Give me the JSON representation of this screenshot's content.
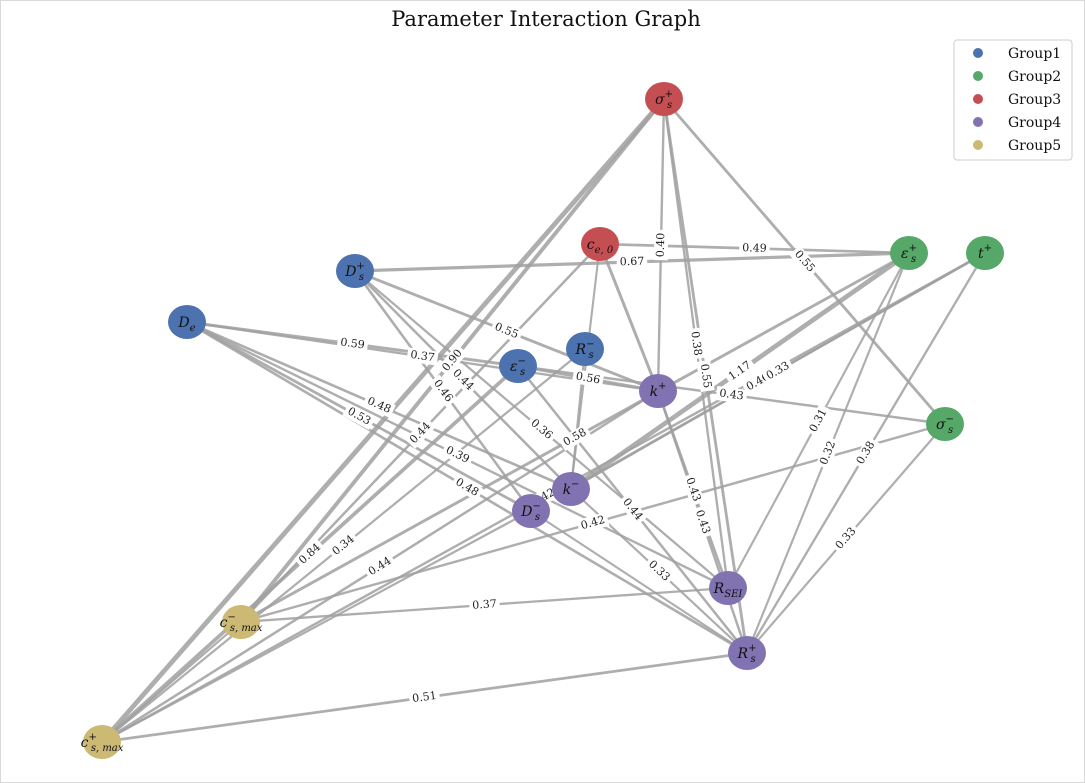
{
  "title": "Parameter Interaction Graph",
  "legend": [
    {
      "label": "Group1",
      "color": "#4c72b0"
    },
    {
      "label": "Group2",
      "color": "#55a868"
    },
    {
      "label": "Group3",
      "color": "#c44e52"
    },
    {
      "label": "Group4",
      "color": "#8172b2"
    },
    {
      "label": "Group5",
      "color": "#ccb974"
    }
  ],
  "nodes": [
    {
      "id": "sigma_s_plus",
      "name": "σ",
      "sub": "s",
      "sup": "+",
      "group": 3
    },
    {
      "id": "c_e0",
      "name": "c",
      "sub": "e, 0",
      "sup": "",
      "group": 3
    },
    {
      "id": "Ds_plus",
      "name": "D",
      "sub": "s",
      "sup": "+",
      "group": 1
    },
    {
      "id": "De",
      "name": "D",
      "sub": "e",
      "sup": "",
      "group": 1
    },
    {
      "id": "Rs_minus",
      "name": "R",
      "sub": "s",
      "sup": "−",
      "group": 1
    },
    {
      "id": "eps_s_minus",
      "name": "ε",
      "sub": "s",
      "sup": "−",
      "group": 1
    },
    {
      "id": "eps_s_plus",
      "name": "ε",
      "sub": "s",
      "sup": "+",
      "group": 2
    },
    {
      "id": "t_plus",
      "name": "t",
      "sub": "",
      "sup": "+",
      "group": 2
    },
    {
      "id": "sigma_s_minus",
      "name": "σ",
      "sub": "s",
      "sup": "−",
      "group": 2
    },
    {
      "id": "k_plus",
      "name": "k",
      "sub": "",
      "sup": "+",
      "group": 4
    },
    {
      "id": "k_minus",
      "name": "k",
      "sub": "",
      "sup": "−",
      "group": 4
    },
    {
      "id": "Ds_minus",
      "name": "D",
      "sub": "s",
      "sup": "−",
      "group": 4
    },
    {
      "id": "R_SEI",
      "name": "R",
      "sub": "SEI",
      "sup": "",
      "group": 4
    },
    {
      "id": "Rs_plus",
      "name": "R",
      "sub": "s",
      "sup": "+",
      "group": 4
    },
    {
      "id": "cs_max_minus",
      "name": "c",
      "sub": "s, max",
      "sup": "−",
      "group": 5
    },
    {
      "id": "cs_max_plus",
      "name": "c",
      "sub": "s, max",
      "sup": "+",
      "group": 5
    }
  ],
  "edges": [
    {
      "source": "sigma_s_plus",
      "target": "cs_max_plus",
      "weight": 1.2,
      "label": ""
    },
    {
      "source": "sigma_s_plus",
      "target": "cs_max_minus",
      "weight": 0.9,
      "label": "0.90"
    },
    {
      "source": "sigma_s_plus",
      "target": "k_plus",
      "weight": 0.4,
      "label": "0.40"
    },
    {
      "source": "sigma_s_plus",
      "target": "R_SEI",
      "weight": 0.38,
      "label": "0.38"
    },
    {
      "source": "sigma_s_plus",
      "target": "Rs_plus",
      "weight": 0.55,
      "label": "0.55"
    },
    {
      "source": "sigma_s_plus",
      "target": "sigma_s_minus",
      "weight": 0.55,
      "label": "0.55"
    },
    {
      "source": "c_e0",
      "target": "eps_s_plus",
      "weight": 0.49,
      "label": "0.49"
    },
    {
      "source": "c_e0",
      "target": "cs_max_minus",
      "weight": 0.44,
      "label": "0.44"
    },
    {
      "source": "c_e0",
      "target": "k_plus",
      "weight": 0.6,
      "label": ""
    },
    {
      "source": "c_e0",
      "target": "k_minus",
      "weight": 0.3,
      "label": ""
    },
    {
      "source": "Ds_plus",
      "target": "k_plus",
      "weight": 0.55,
      "label": "0.55"
    },
    {
      "source": "Ds_plus",
      "target": "Ds_minus",
      "weight": 0.46,
      "label": "0.46"
    },
    {
      "source": "Ds_plus",
      "target": "k_minus",
      "weight": 0.44,
      "label": "0.44"
    },
    {
      "source": "Ds_plus",
      "target": "R_SEI",
      "weight": 0.36,
      "label": "0.36"
    },
    {
      "source": "De",
      "target": "eps_s_minus",
      "weight": 0.59,
      "label": "0.59"
    },
    {
      "source": "De",
      "target": "Ds_minus",
      "weight": 0.53,
      "label": "0.53"
    },
    {
      "source": "De",
      "target": "k_plus",
      "weight": 0.37,
      "label": "0.37"
    },
    {
      "source": "De",
      "target": "Rs_plus",
      "weight": 0.48,
      "label": "0.48"
    },
    {
      "source": "De",
      "target": "R_SEI",
      "weight": 0.39,
      "label": "0.39"
    },
    {
      "source": "De",
      "target": "k_minus",
      "weight": 0.48,
      "label": "0.48"
    },
    {
      "source": "eps_s_minus",
      "target": "sigma_s_minus",
      "weight": 0.43,
      "label": "0.43"
    },
    {
      "source": "eps_s_minus",
      "target": "cs_max_plus",
      "weight": 0.84,
      "label": "0.84"
    },
    {
      "source": "eps_s_minus",
      "target": "Rs_plus",
      "weight": 0.44,
      "label": "0.44"
    },
    {
      "source": "eps_s_minus",
      "target": "k_plus",
      "weight": 0.56,
      "label": "0.56"
    },
    {
      "source": "Rs_minus",
      "target": "cs_max_plus",
      "weight": 0.34,
      "label": "0.34"
    },
    {
      "source": "Rs_minus",
      "target": "k_minus",
      "weight": 0.3,
      "label": ""
    },
    {
      "source": "eps_s_plus",
      "target": "Ds_plus",
      "weight": 0.67,
      "label": "0.67"
    },
    {
      "source": "eps_s_plus",
      "target": "k_minus",
      "weight": 1.17,
      "label": "1.17"
    },
    {
      "source": "eps_s_plus",
      "target": "R_SEI",
      "weight": 0.31,
      "label": "0.31"
    },
    {
      "source": "eps_s_plus",
      "target": "Rs_plus",
      "weight": 0.32,
      "label": "0.32"
    },
    {
      "source": "eps_s_plus",
      "target": "cs_max_minus",
      "weight": 0.58,
      "label": "0.58"
    },
    {
      "source": "t_plus",
      "target": "cs_max_plus",
      "weight": 0.42,
      "label": "0.42"
    },
    {
      "source": "t_plus",
      "target": "Ds_minus",
      "weight": 0.46,
      "label": "0.46"
    },
    {
      "source": "t_plus",
      "target": "Rs_plus",
      "weight": 0.38,
      "label": "0.38"
    },
    {
      "source": "t_plus",
      "target": "k_minus",
      "weight": 0.33,
      "label": "0.33"
    },
    {
      "source": "sigma_s_minus",
      "target": "cs_max_minus",
      "weight": 0.42,
      "label": "0.42"
    },
    {
      "source": "sigma_s_minus",
      "target": "Rs_plus",
      "weight": 0.33,
      "label": "0.33"
    },
    {
      "source": "k_plus",
      "target": "R_SEI",
      "weight": 0.43,
      "label": "0.43"
    },
    {
      "source": "k_plus",
      "target": "Rs_plus",
      "weight": 0.43,
      "label": "0.43"
    },
    {
      "source": "k_plus",
      "target": "cs_max_plus",
      "weight": 0.44,
      "label": "0.44"
    },
    {
      "source": "k_minus",
      "target": "Rs_plus",
      "weight": 0.33,
      "label": "0.33"
    },
    {
      "source": "k_minus",
      "target": "cs_max_plus",
      "weight": 0.34,
      "label": ""
    },
    {
      "source": "Ds_minus",
      "target": "Rs_plus",
      "weight": 0.3,
      "label": ""
    },
    {
      "source": "R_SEI",
      "target": "cs_max_minus",
      "weight": 0.37,
      "label": "0.37"
    },
    {
      "source": "Rs_plus",
      "target": "cs_max_plus",
      "weight": 0.51,
      "label": "0.51"
    },
    {
      "source": "cs_max_minus",
      "target": "cs_max_plus",
      "weight": 0.3,
      "label": ""
    }
  ]
}
